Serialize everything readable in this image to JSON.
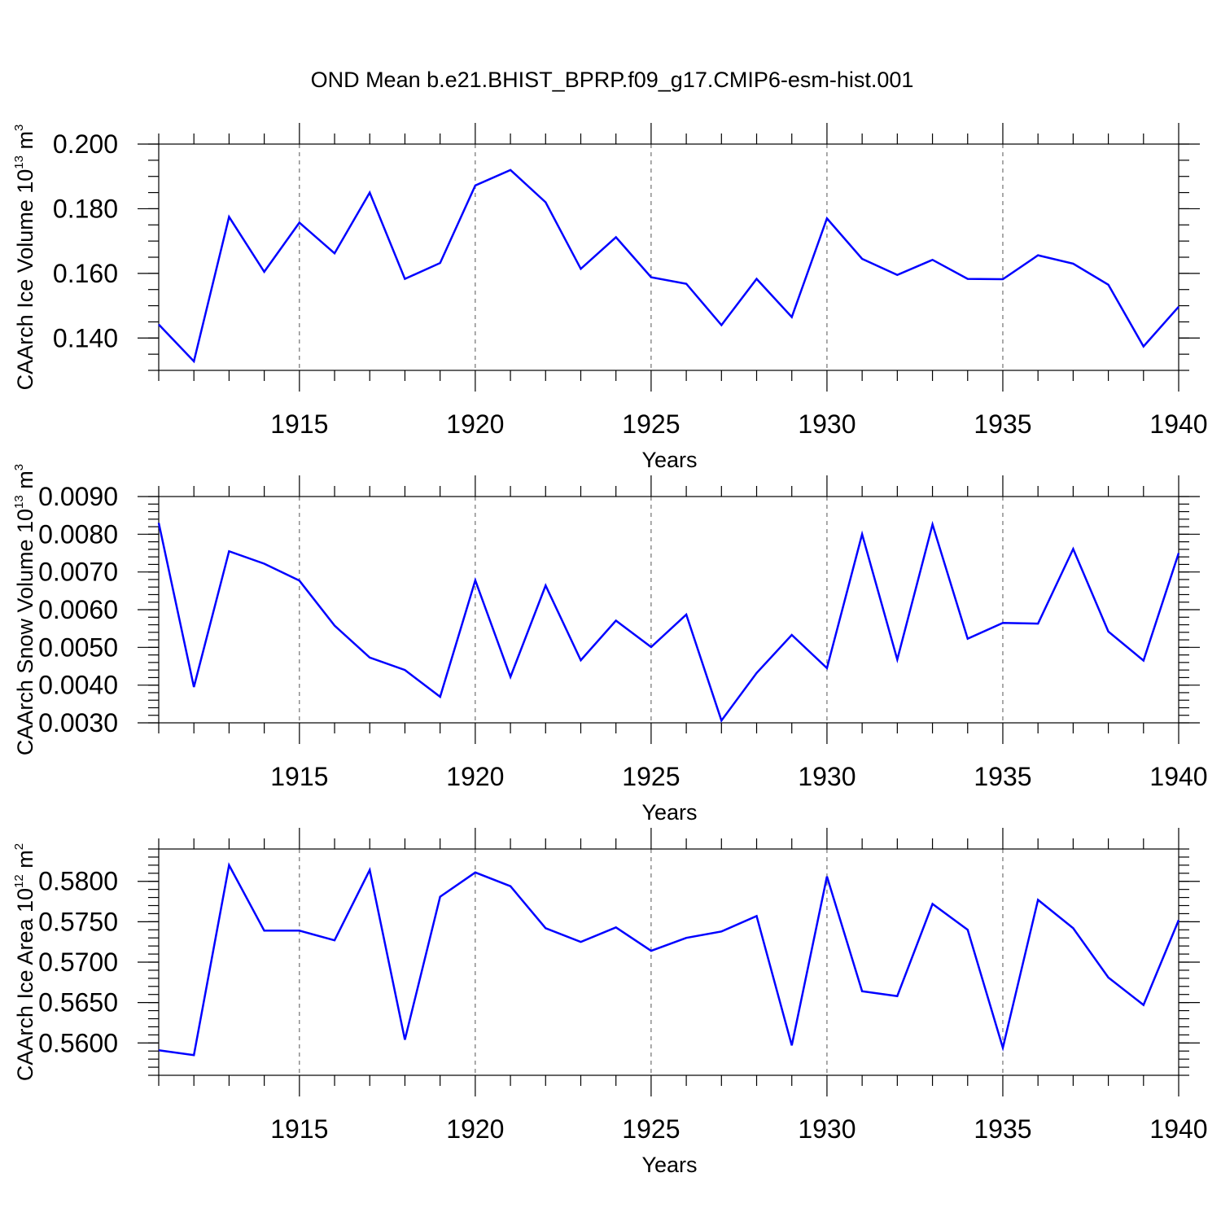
{
  "chart_data": {
    "type": "line",
    "title": "OND Mean b.e21.BHIST_BPRP.f09_g17.CMIP6-esm-hist.001",
    "line_color": "#0000ff",
    "x": [
      1911,
      1912,
      1913,
      1914,
      1915,
      1916,
      1917,
      1918,
      1919,
      1920,
      1921,
      1922,
      1923,
      1924,
      1925,
      1926,
      1927,
      1928,
      1929,
      1930,
      1931,
      1932,
      1933,
      1934,
      1935,
      1936,
      1937,
      1938,
      1939,
      1940
    ],
    "xlim": [
      1911,
      1940
    ],
    "xticks": [
      1915,
      1920,
      1925,
      1930,
      1935,
      1940
    ],
    "panels": [
      {
        "name": "ice-volume",
        "ylabel": "CAArch Ice Volume 10",
        "ylabel_exp": "13",
        "ylabel_unit": "m",
        "ylabel_unit_exp": "3",
        "xlabel": "Years",
        "ylim": [
          0.13,
          0.2
        ],
        "yticks": [
          "0.140",
          "0.160",
          "0.180",
          "0.200"
        ],
        "ytick_values": [
          0.14,
          0.16,
          0.18,
          0.2
        ],
        "minor_step": 0.005,
        "values": [
          0.1442,
          0.1328,
          0.1775,
          0.1605,
          0.1757,
          0.1662,
          0.185,
          0.1583,
          0.1632,
          0.1872,
          0.192,
          0.182,
          0.1614,
          0.1712,
          0.1588,
          0.1568,
          0.144,
          0.1583,
          0.1465,
          0.177,
          0.1645,
          0.1595,
          0.1642,
          0.1583,
          0.1582,
          0.1656,
          0.163,
          0.1565,
          0.1374,
          0.1497
        ]
      },
      {
        "name": "snow-volume",
        "ylabel": "CAArch Snow Volume 10",
        "ylabel_exp": "13",
        "ylabel_unit": "m",
        "ylabel_unit_exp": "3",
        "xlabel": "Years",
        "ylim": [
          0.003,
          0.009
        ],
        "yticks": [
          "0.0030",
          "0.0040",
          "0.0050",
          "0.0060",
          "0.0070",
          "0.0080",
          "0.0090"
        ],
        "ytick_values": [
          0.003,
          0.004,
          0.005,
          0.006,
          0.007,
          0.008,
          0.009
        ],
        "minor_step": 0.0002,
        "values": [
          0.0083,
          0.00395,
          0.00755,
          0.00722,
          0.00677,
          0.00558,
          0.00473,
          0.0044,
          0.00369,
          0.00678,
          0.00422,
          0.00664,
          0.00466,
          0.00571,
          0.00501,
          0.00587,
          0.00306,
          0.00432,
          0.00533,
          0.00445,
          0.008,
          0.00468,
          0.00826,
          0.00523,
          0.00565,
          0.00563,
          0.00761,
          0.00542,
          0.00465,
          0.0075
        ]
      },
      {
        "name": "ice-area",
        "ylabel": "CAArch Ice Area 10",
        "ylabel_exp": "12",
        "ylabel_unit": "m",
        "ylabel_unit_exp": "2",
        "xlabel": "Years",
        "ylim": [
          0.556,
          0.584
        ],
        "yticks": [
          "0.5600",
          "0.5650",
          "0.5700",
          "0.5750",
          "0.5800"
        ],
        "ytick_values": [
          0.56,
          0.565,
          0.57,
          0.575,
          0.58
        ],
        "minor_step": 0.001,
        "values": [
          0.5591,
          0.5585,
          0.582,
          0.5739,
          0.5739,
          0.5727,
          0.5814,
          0.5604,
          0.5781,
          0.5811,
          0.5794,
          0.5742,
          0.5725,
          0.5743,
          0.5714,
          0.573,
          0.5738,
          0.5757,
          0.5597,
          0.5806,
          0.5664,
          0.5658,
          0.5772,
          0.574,
          0.5594,
          0.5777,
          0.5742,
          0.5681,
          0.5647,
          0.5752
        ]
      }
    ]
  }
}
